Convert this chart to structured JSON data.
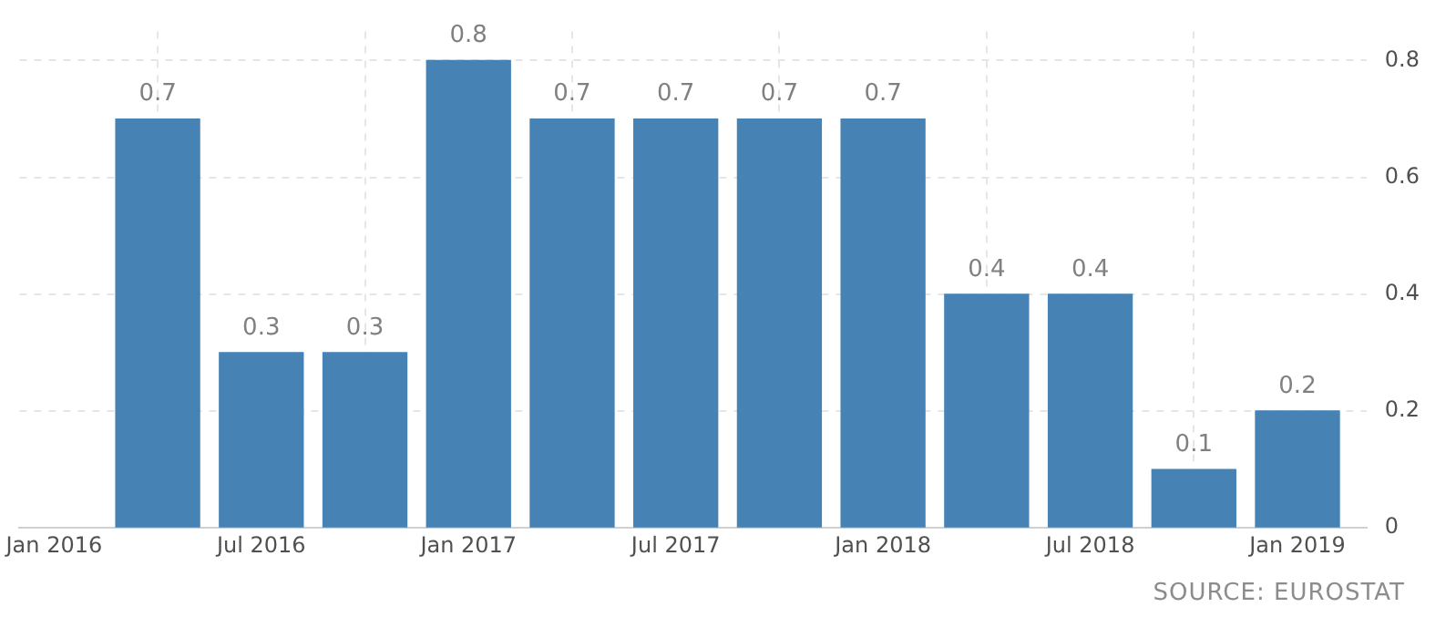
{
  "chart_data": {
    "type": "bar",
    "x": [
      "2016-04",
      "2016-07",
      "2016-10",
      "2017-01",
      "2017-04",
      "2017-07",
      "2017-10",
      "2018-01",
      "2018-04",
      "2018-07",
      "2018-10",
      "2019-01"
    ],
    "values": [
      0.7,
      0.3,
      0.3,
      0.8,
      0.7,
      0.7,
      0.7,
      0.7,
      0.4,
      0.4,
      0.1,
      0.2
    ],
    "color": "#4682b4",
    "data_labels": true,
    "xlim": [
      "2015-12",
      "2019-03"
    ],
    "xticks": [
      {
        "value": "2016-01",
        "label": "Jan 2016"
      },
      {
        "value": "2016-07",
        "label": "Jul 2016"
      },
      {
        "value": "2017-01",
        "label": "Jan 2017"
      },
      {
        "value": "2017-07",
        "label": "Jul 2017"
      },
      {
        "value": "2018-01",
        "label": "Jan 2018"
      },
      {
        "value": "2018-07",
        "label": "Jul 2018"
      },
      {
        "value": "2019-01",
        "label": "Jan 2019"
      }
    ],
    "ylim": [
      0,
      0.85
    ],
    "yticks": [
      0,
      0.2,
      0.4,
      0.6,
      0.8
    ],
    "grid": true,
    "annotations": [
      "SOURCE: EUROSTAT"
    ]
  }
}
